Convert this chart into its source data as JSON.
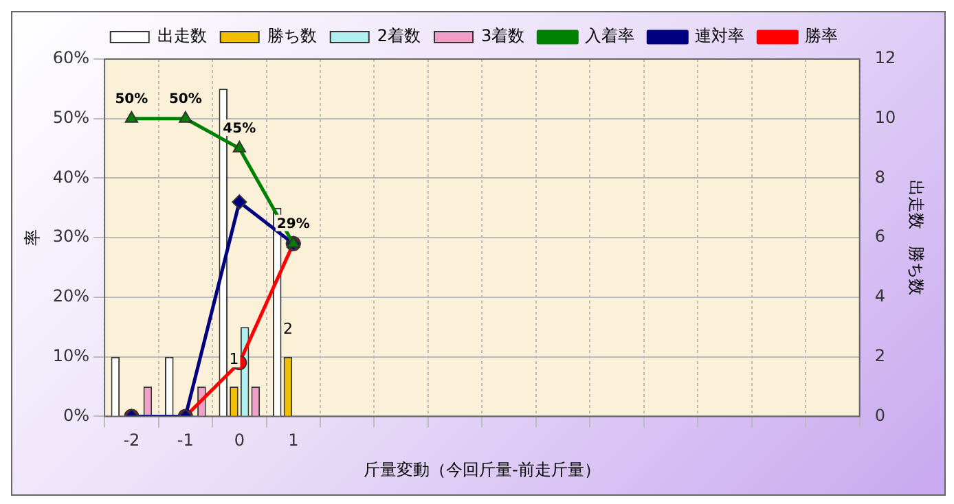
{
  "chart_data": {
    "type": "bar",
    "xlabel": "斤量変動（今回斤量-前走斤量）",
    "ylabel": "率",
    "y2label": "出走数　勝ち数",
    "categories": [
      "-2",
      "-1",
      "0",
      "1",
      null,
      null,
      null,
      null,
      null,
      null,
      null,
      null,
      null,
      null
    ],
    "series": [
      {
        "name": "出走数",
        "type": "bar",
        "axis": "y2",
        "color": "#ffffff",
        "values": [
          2,
          2,
          11,
          7,
          null,
          null,
          null,
          null,
          null,
          null,
          null,
          null,
          null,
          null
        ]
      },
      {
        "name": "勝ち数",
        "type": "bar",
        "axis": "y2",
        "color": "#f0c000",
        "values": [
          0,
          0,
          1,
          2,
          null,
          null,
          null,
          null,
          null,
          null,
          null,
          null,
          null,
          null
        ],
        "value_labels": [
          null,
          null,
          "1",
          "2",
          null,
          null,
          null,
          null,
          null,
          null,
          null,
          null,
          null,
          null
        ]
      },
      {
        "name": "2着数",
        "type": "bar",
        "axis": "y2",
        "color": "#b0f0f0",
        "values": [
          0,
          0,
          3,
          0,
          null,
          null,
          null,
          null,
          null,
          null,
          null,
          null,
          null,
          null
        ]
      },
      {
        "name": "3着数",
        "type": "bar",
        "axis": "y2",
        "color": "#f0a0c8",
        "values": [
          1,
          1,
          1,
          0,
          null,
          null,
          null,
          null,
          null,
          null,
          null,
          null,
          null,
          null
        ]
      },
      {
        "name": "入着率",
        "type": "line",
        "color": "#008000",
        "marker": "triangle",
        "values": [
          50,
          50,
          45,
          29,
          null,
          null,
          null,
          null,
          null,
          null,
          null,
          null,
          null,
          null
        ],
        "value_labels": [
          "50%",
          "50%",
          "45%",
          "29%",
          null,
          null,
          null,
          null,
          null,
          null,
          null,
          null,
          null,
          null
        ]
      },
      {
        "name": "連対率",
        "type": "line",
        "color": "#000080",
        "marker": "diamond",
        "values": [
          0,
          0,
          36,
          29,
          null,
          null,
          null,
          null,
          null,
          null,
          null,
          null,
          null,
          null
        ]
      },
      {
        "name": "勝率",
        "type": "line",
        "color": "#ff0000",
        "marker": "circle",
        "values": [
          0,
          0,
          9,
          29,
          null,
          null,
          null,
          null,
          null,
          null,
          null,
          null,
          null,
          null
        ]
      }
    ],
    "ylim": [
      0,
      60
    ],
    "yticks": [
      {
        "value": 0,
        "label": "0%"
      },
      {
        "value": 10,
        "label": "10%"
      },
      {
        "value": 20,
        "label": "20%"
      },
      {
        "value": 30,
        "label": "30%"
      },
      {
        "value": 40,
        "label": "40%"
      },
      {
        "value": 50,
        "label": "50%"
      },
      {
        "value": 60,
        "label": "60%"
      }
    ],
    "y2lim": [
      0,
      12
    ],
    "y2ticks": [
      0,
      2,
      4,
      6,
      8,
      10,
      12
    ],
    "grid": true,
    "legend": "top"
  }
}
